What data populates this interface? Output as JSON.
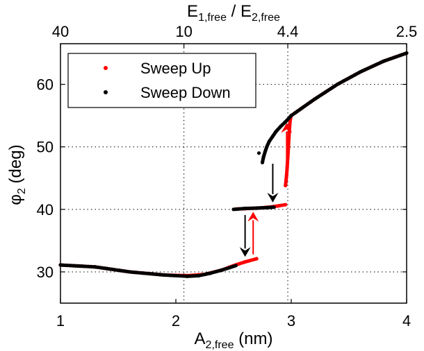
{
  "chart_data": {
    "type": "scatter",
    "xlabel": {
      "main": "A",
      "sub": "2,free",
      "unit": " (nm)"
    },
    "ylabel": {
      "main": "φ",
      "sub": "2",
      "unit": " (deg)"
    },
    "top_xlabel": {
      "main1": "E",
      "sub1": "1,free",
      "sep": " / ",
      "main2": "E",
      "sub2": "2,free"
    },
    "xlim": [
      1,
      4
    ],
    "ylim": [
      25,
      66.5
    ],
    "xticks": [
      1,
      2,
      3,
      4
    ],
    "xtick_labels": [
      "1",
      "2",
      "3",
      "4"
    ],
    "yticks": [
      30,
      40,
      50,
      60
    ],
    "ytick_labels": [
      "30",
      "40",
      "50",
      "60"
    ],
    "top_ticks": [
      1,
      2.07,
      2.97,
      4
    ],
    "top_tick_labels": [
      "40",
      "10",
      "4.4",
      "2.5"
    ],
    "grid": true,
    "legend_position": "top-left",
    "series": [
      {
        "name": "Sweep Up",
        "color": "#ff0000",
        "segments": [
          [
            [
              1.0,
              31.1
            ],
            [
              1.3,
              30.8
            ],
            [
              1.6,
              30.0
            ],
            [
              1.9,
              29.5
            ],
            [
              2.1,
              29.4
            ],
            [
              2.25,
              29.6
            ],
            [
              2.4,
              30.3
            ],
            [
              2.5,
              31.0
            ],
            [
              2.6,
              31.6
            ],
            [
              2.7,
              32.1
            ]
          ],
          [
            [
              2.52,
              40.05
            ],
            [
              2.6,
              40.12
            ],
            [
              2.7,
              40.2
            ],
            [
              2.78,
              40.3
            ],
            [
              2.85,
              40.45
            ],
            [
              2.95,
              40.75
            ]
          ],
          [
            [
              2.95,
              43.8
            ],
            [
              2.955,
              44.6
            ],
            [
              2.96,
              45.5
            ],
            [
              2.965,
              46.8
            ],
            [
              2.97,
              48.2
            ],
            [
              2.975,
              49.8
            ],
            [
              2.98,
              51.5
            ],
            [
              2.985,
              53.0
            ],
            [
              2.99,
              54.2
            ],
            [
              3.0,
              55.0
            ],
            [
              3.1,
              56.3
            ],
            [
              3.2,
              57.6
            ],
            [
              3.4,
              60.0
            ],
            [
              3.6,
              62.0
            ],
            [
              3.8,
              63.7
            ],
            [
              4.0,
              65.0
            ]
          ]
        ]
      },
      {
        "name": "Sweep Down",
        "color": "#000000",
        "segments": [
          [
            [
              1.0,
              31.1
            ],
            [
              1.3,
              30.8
            ],
            [
              1.6,
              30.0
            ],
            [
              1.9,
              29.5
            ],
            [
              2.1,
              29.3
            ],
            [
              2.2,
              29.4
            ],
            [
              2.3,
              29.8
            ],
            [
              2.4,
              30.3
            ],
            [
              2.52,
              31.0
            ]
          ],
          [
            [
              2.5,
              40.0
            ],
            [
              2.6,
              40.15
            ],
            [
              2.7,
              40.2
            ],
            [
              2.8,
              40.3
            ],
            [
              2.85,
              40.35
            ]
          ],
          [
            [
              2.75,
              47.5
            ],
            [
              2.76,
              48.4
            ],
            [
              2.775,
              49.3
            ],
            [
              2.79,
              50.1
            ],
            [
              2.81,
              50.9
            ],
            [
              2.84,
              51.7
            ],
            [
              2.87,
              52.5
            ],
            [
              2.91,
              53.3
            ],
            [
              2.95,
              54.0
            ],
            [
              3.0,
              55.0
            ],
            [
              3.1,
              56.3
            ],
            [
              3.2,
              57.6
            ],
            [
              3.4,
              60.0
            ],
            [
              3.6,
              62.0
            ],
            [
              3.8,
              63.7
            ],
            [
              4.0,
              65.0
            ]
          ]
        ]
      }
    ],
    "isolated_points": [
      {
        "series": "Sweep Down",
        "x": 2.72,
        "y": 49.0
      }
    ],
    "annotations": [
      {
        "type": "arrow",
        "color": "#000000",
        "from": [
          2.6,
          39.1
        ],
        "to": [
          2.6,
          32.4
        ],
        "direction": "down"
      },
      {
        "type": "arrow",
        "color": "#ff0000",
        "from": [
          2.67,
          32.8
        ],
        "to": [
          2.67,
          39.6
        ],
        "direction": "up"
      },
      {
        "type": "arrow",
        "color": "#000000",
        "from": [
          2.84,
          47.3
        ],
        "to": [
          2.84,
          41.1
        ],
        "direction": "down"
      },
      {
        "type": "arrow",
        "color": "#ff0000",
        "from": [
          2.96,
          44.8
        ],
        "to": [
          2.96,
          53.8
        ],
        "direction": "up"
      }
    ]
  }
}
